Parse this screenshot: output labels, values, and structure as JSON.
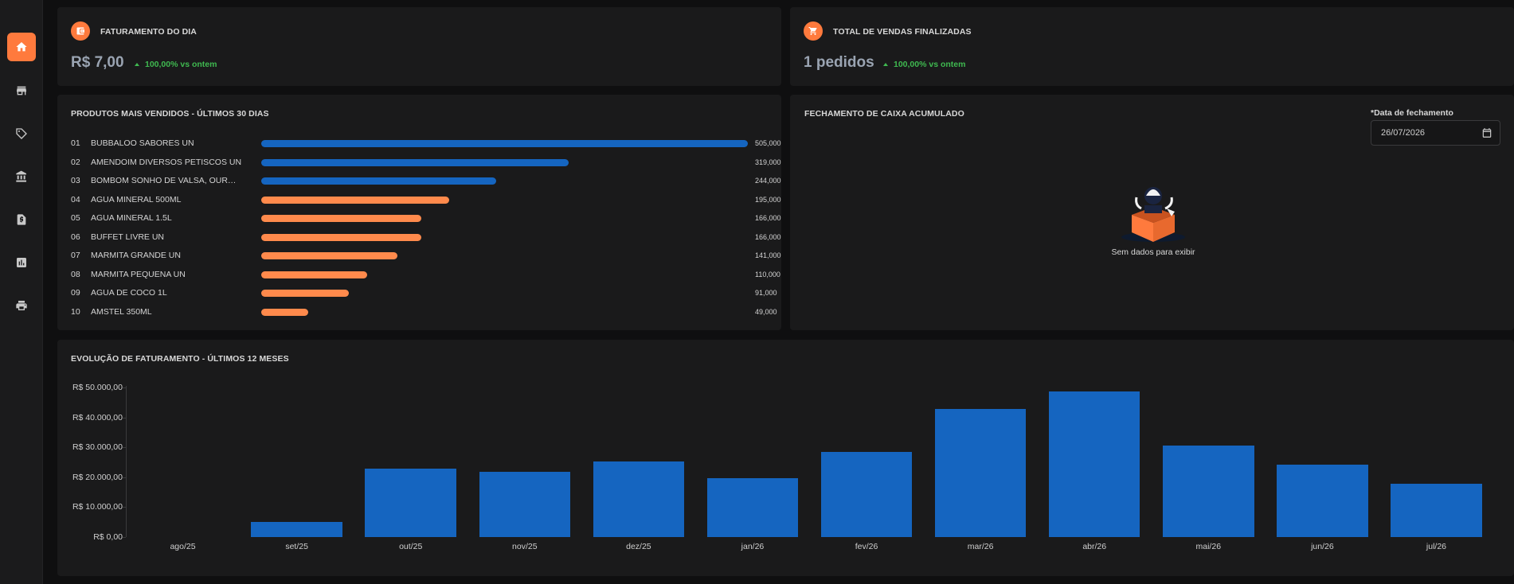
{
  "sidebar": {
    "items": [
      {
        "icon": "home-icon",
        "active": true
      },
      {
        "icon": "store-icon",
        "active": false
      },
      {
        "icon": "tag-icon",
        "active": false
      },
      {
        "icon": "bank-icon",
        "active": false
      },
      {
        "icon": "invoice-icon",
        "active": false
      },
      {
        "icon": "report-icon",
        "active": false
      },
      {
        "icon": "printer-icon",
        "active": false
      }
    ]
  },
  "kpis": {
    "revenue": {
      "title": "FATURAMENTO DO DIA",
      "value": "R$ 7,00",
      "change": "100,00% vs ontem",
      "icon": "wallet-icon"
    },
    "sales": {
      "title": "TOTAL DE VENDAS FINALIZADAS",
      "value": "1 pedidos",
      "change": "100,00% vs ontem",
      "icon": "cart-icon"
    }
  },
  "top_products": {
    "title": "PRODUTOS MAIS VENDIDOS - ÚLTIMOS 30 DIAS",
    "max_value": 505,
    "items": [
      {
        "rank": "01",
        "name": "BUBBALOO SABORES UN",
        "value": 505,
        "label": "505,000",
        "color": "#1565c0"
      },
      {
        "rank": "02",
        "name": "AMENDOIM DIVERSOS PETISCOS UN",
        "value": 319,
        "label": "319,000",
        "color": "#1565c0"
      },
      {
        "rank": "03",
        "name": "BOMBOM SONHO DE VALSA, OURO BRANCO UN",
        "value": 244,
        "label": "244,000",
        "color": "#1565c0"
      },
      {
        "rank": "04",
        "name": "AGUA MINERAL 500ML",
        "value": 195,
        "label": "195,000",
        "color": "#ff8a4c"
      },
      {
        "rank": "05",
        "name": "AGUA MINERAL 1.5L",
        "value": 166,
        "label": "166,000",
        "color": "#ff8a4c"
      },
      {
        "rank": "06",
        "name": "BUFFET LIVRE UN",
        "value": 166,
        "label": "166,000",
        "color": "#ff8a4c"
      },
      {
        "rank": "07",
        "name": "MARMITA GRANDE UN",
        "value": 141,
        "label": "141,000",
        "color": "#ff8a4c"
      },
      {
        "rank": "08",
        "name": "MARMITA PEQUENA UN",
        "value": 110,
        "label": "110,000",
        "color": "#ff8a4c"
      },
      {
        "rank": "09",
        "name": "AGUA DE COCO 1L",
        "value": 91,
        "label": "91,000",
        "color": "#ff8a4c"
      },
      {
        "rank": "10",
        "name": "AMSTEL 350ML",
        "value": 49,
        "label": "49,000",
        "color": "#ff8a4c"
      }
    ]
  },
  "cash_closing": {
    "title": "FECHAMENTO DE CAIXA ACUMULADO",
    "date_label": "*Data de fechamento",
    "date_value": "26/07/2026",
    "empty_text": "Sem dados para exibir"
  },
  "chart_data": {
    "type": "bar",
    "title": "EVOLUÇÃO DE FATURAMENTO - ÚLTIMOS 12 MESES",
    "categories": [
      "ago/25",
      "set/25",
      "out/25",
      "nov/25",
      "dez/25",
      "jan/26",
      "fev/26",
      "mar/26",
      "abr/26",
      "mai/26",
      "jun/26",
      "jul/26"
    ],
    "values": [
      0,
      5000,
      23000,
      21800,
      25200,
      19700,
      28500,
      42700,
      48800,
      30500,
      24200,
      17700
    ],
    "ylim": [
      0,
      50000
    ],
    "yticks": [
      "R$ 0,00",
      "R$ 10.000,00",
      "R$ 20.000,00",
      "R$ 30.000,00",
      "R$ 40.000,00",
      "R$ 50.000,00"
    ],
    "color": "#1565c0",
    "grid": false
  }
}
